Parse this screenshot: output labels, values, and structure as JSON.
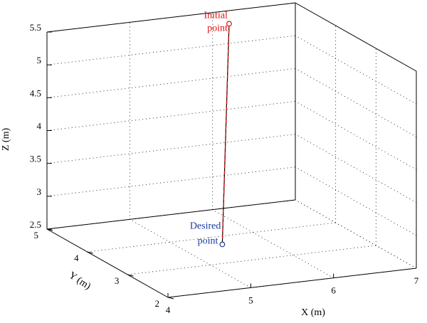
{
  "chart_data": {
    "type": "line3d",
    "xlabel": "X (m)",
    "ylabel": "Y (m)",
    "zlabel": "Z (m)",
    "xlim": [
      4,
      7
    ],
    "ylim": [
      2,
      5
    ],
    "zlim": [
      2.5,
      5.5
    ],
    "xticks": [
      "4",
      "5",
      "6",
      "7"
    ],
    "yticks": [
      "2",
      "3",
      "4",
      "5"
    ],
    "zticks": [
      "2.5",
      "3",
      "3.5",
      "4",
      "4.5",
      "5",
      "5.5"
    ],
    "grid": true,
    "series": [
      {
        "style": "solid",
        "color": "#000000",
        "points": [
          [
            6.2,
            5.0,
            5.3
          ],
          [
            4.9,
            2.5,
            3.0
          ]
        ]
      },
      {
        "style": "dashed",
        "color": "#e01010",
        "points": [
          [
            6.2,
            5.0,
            5.3
          ],
          [
            4.9,
            2.5,
            3.0
          ]
        ]
      }
    ],
    "annotations": [
      {
        "lines": [
          "Initial",
          "point"
        ],
        "color": "#e01010",
        "point": [
          6.2,
          5.0,
          5.3
        ]
      },
      {
        "lines": [
          "Desired",
          "point"
        ],
        "color": "#1a3aa0",
        "point": [
          4.9,
          2.5,
          3.0
        ]
      }
    ]
  }
}
